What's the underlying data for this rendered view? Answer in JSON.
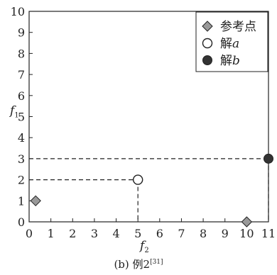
{
  "chart_data": {
    "type": "scatter",
    "xlabel": "f",
    "xlabel_sub": "2",
    "ylabel": "f",
    "ylabel_sub": "1",
    "xlim": [
      0,
      11
    ],
    "ylim": [
      0,
      10
    ],
    "xticks": [
      0,
      1,
      2,
      3,
      4,
      5,
      6,
      7,
      8,
      9,
      10,
      11
    ],
    "yticks": [
      0,
      1,
      2,
      3,
      4,
      5,
      6,
      7,
      8,
      9,
      10
    ],
    "grid": false,
    "legend_position": "top-right",
    "series": [
      {
        "name": "参考点",
        "marker": "diamond",
        "color": "#999999",
        "points": [
          {
            "x": 0.3,
            "y": 1
          },
          {
            "x": 10,
            "y": 0
          }
        ]
      },
      {
        "name": "解a",
        "marker": "circle-open",
        "color": "#ffffff",
        "points": [
          {
            "x": 5,
            "y": 2
          }
        ]
      },
      {
        "name": "解b",
        "marker": "circle-filled",
        "color": "#333333",
        "points": [
          {
            "x": 11,
            "y": 3
          }
        ]
      }
    ],
    "guides": [
      {
        "series": "解a",
        "x": 5,
        "y": 2
      },
      {
        "series": "解b",
        "x": 11,
        "y": 3
      }
    ]
  },
  "legend": [
    {
      "name_main": "参考点",
      "name_italic": ""
    },
    {
      "name_main": "解",
      "name_italic": "a"
    },
    {
      "name_main": "解",
      "name_italic": "b"
    }
  ],
  "caption": {
    "text": "(b) 例2",
    "ref": "[31]"
  }
}
